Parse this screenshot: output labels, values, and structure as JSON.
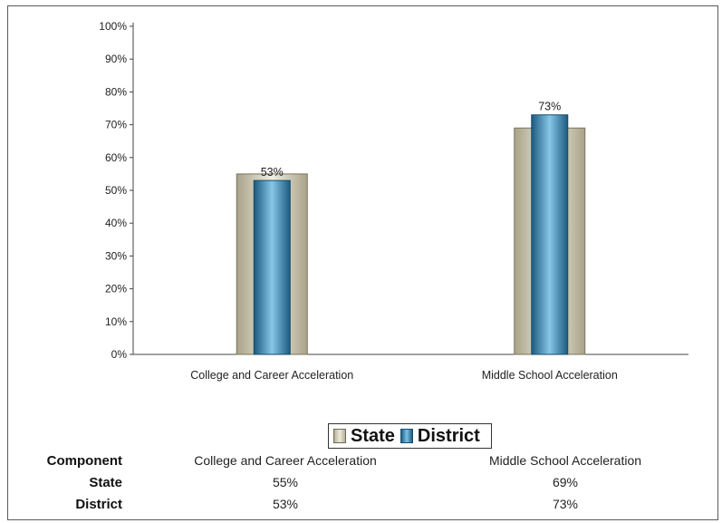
{
  "chart_data": {
    "type": "bar",
    "categories": [
      "College and Career Acceleration",
      "Middle School Acceleration"
    ],
    "series": [
      {
        "name": "State",
        "values": [
          55,
          69
        ],
        "color": "#d9d6c3"
      },
      {
        "name": "District",
        "values": [
          53,
          73
        ],
        "color": "#3a88b8"
      }
    ],
    "data_labels": {
      "series": "District",
      "text": [
        "53%",
        "73%"
      ]
    },
    "ylim": [
      0,
      100
    ],
    "yticks": [
      "0%",
      "10%",
      "20%",
      "30%",
      "40%",
      "50%",
      "60%",
      "70%",
      "80%",
      "90%",
      "100%"
    ],
    "title": "",
    "xlabel": "",
    "ylabel": "",
    "grid": false,
    "legend_placement": "bottom-center"
  },
  "legend": {
    "items": [
      "State",
      "District"
    ]
  },
  "table": {
    "header_label": "Component",
    "columns": [
      "College and Career Acceleration",
      "Middle School Acceleration"
    ],
    "rows": [
      {
        "label": "State",
        "values": [
          "55%",
          "69%"
        ]
      },
      {
        "label": "District",
        "values": [
          "53%",
          "73%"
        ]
      }
    ]
  }
}
